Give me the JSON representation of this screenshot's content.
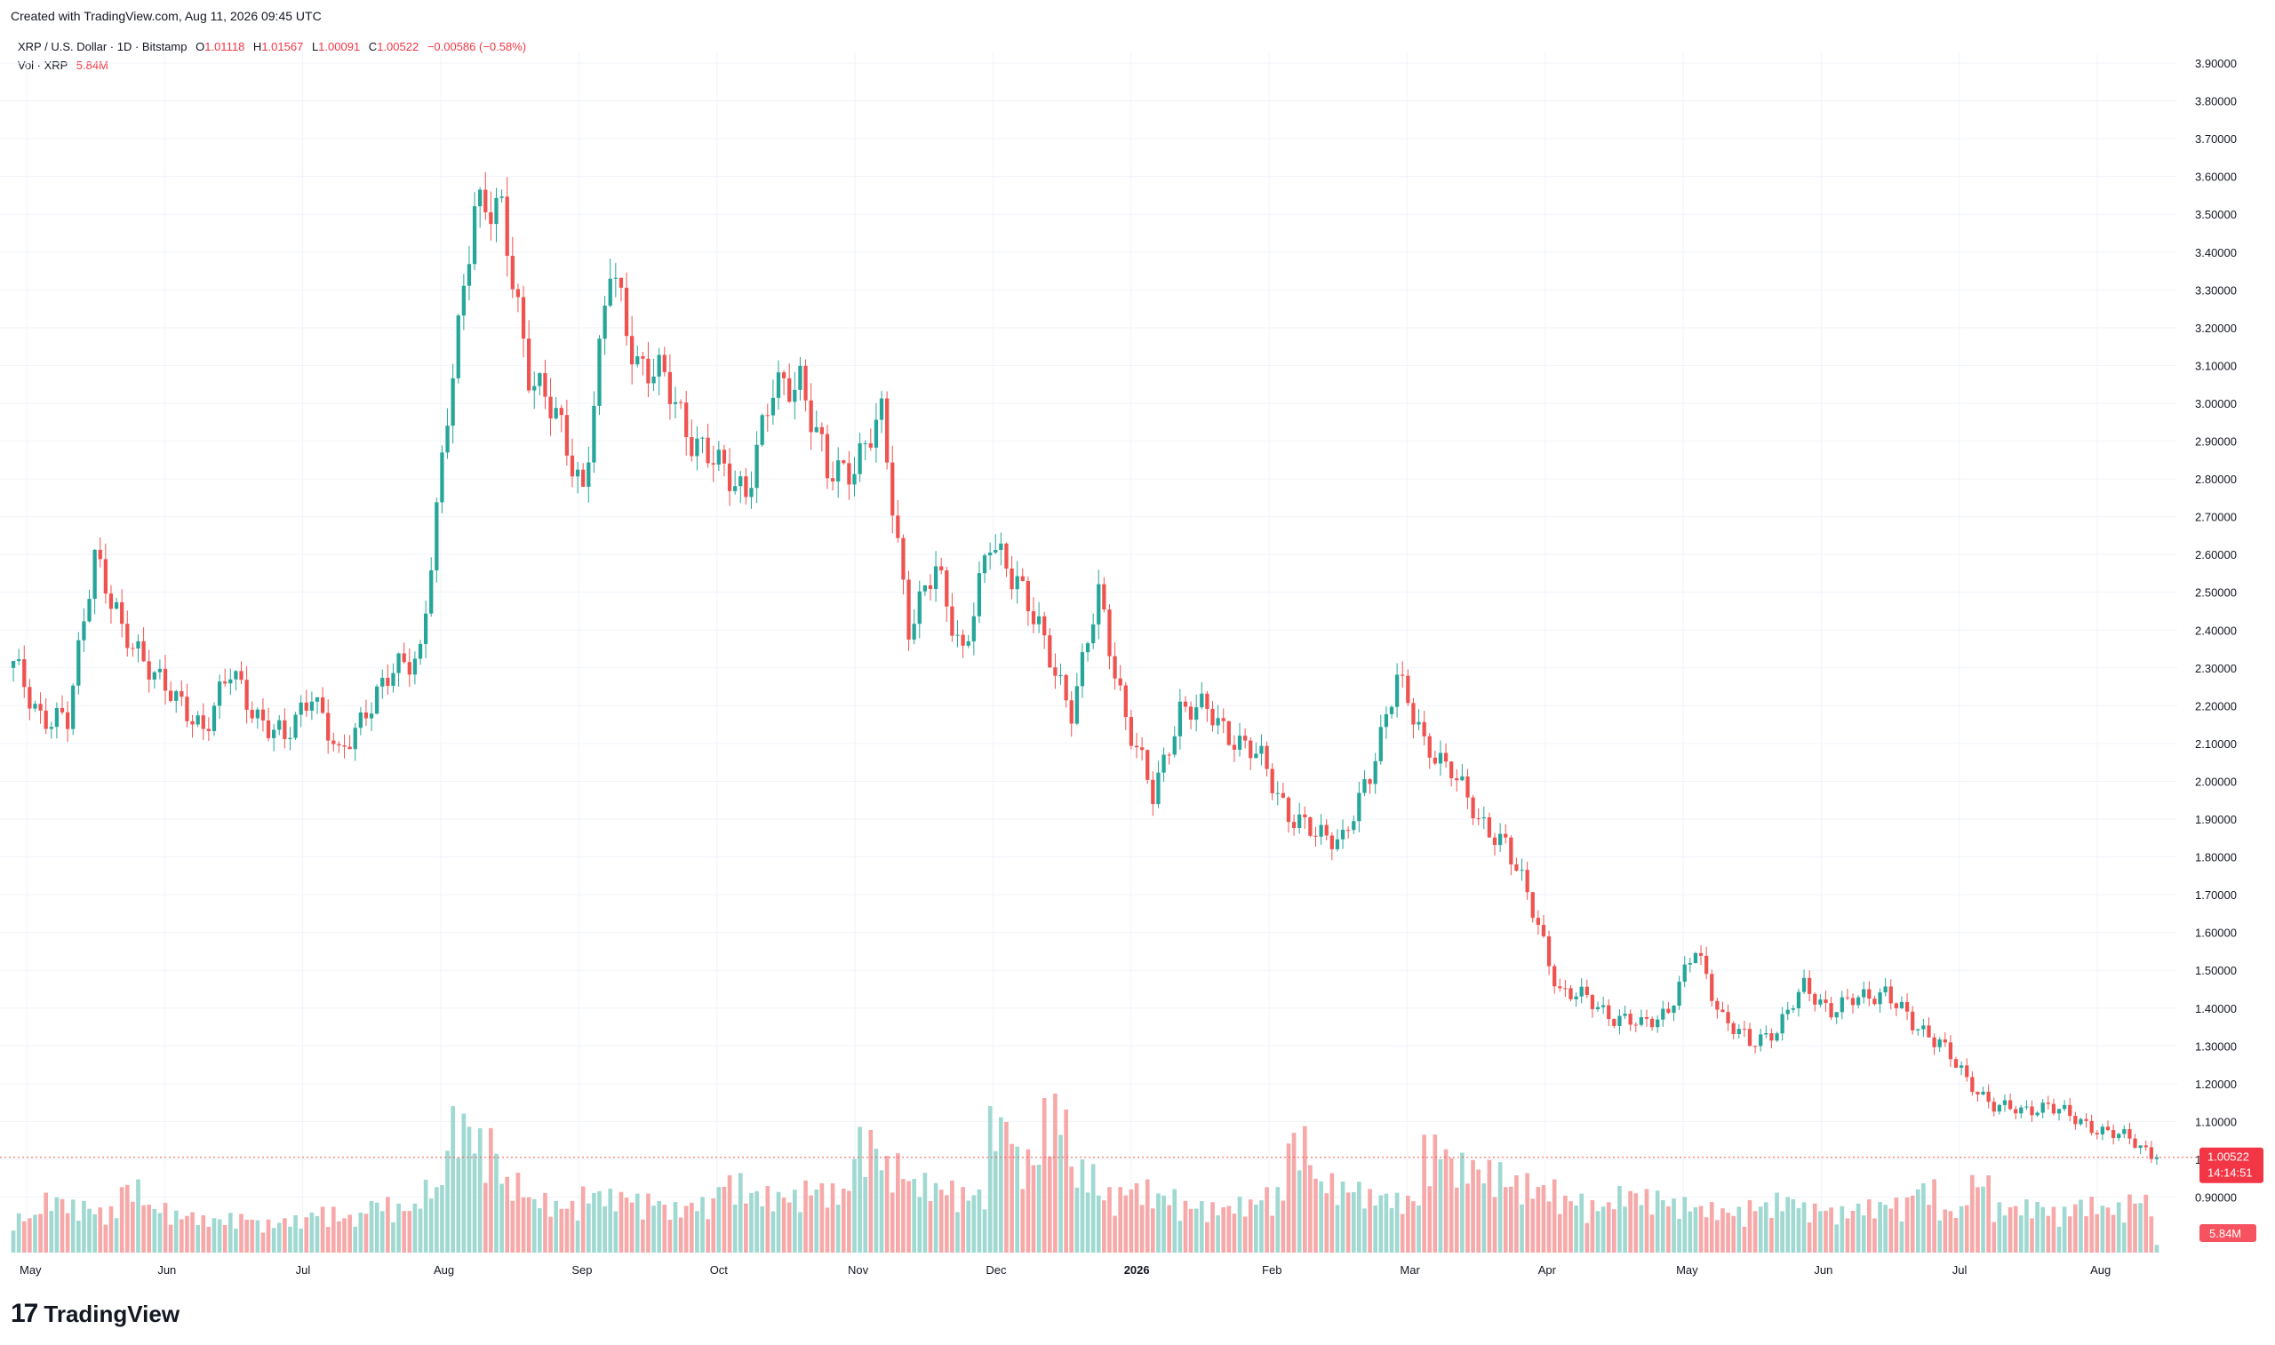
{
  "header": {
    "created": "Created with TradingView.com, Aug 11, 2026 09:45 UTC"
  },
  "legend": {
    "symbol": "XRP / U.S. Dollar · 1D · Bitstamp",
    "open_key": "O",
    "open": "1.01118",
    "high_key": "H",
    "high": "1.01567",
    "low_key": "L",
    "low": "1.00091",
    "close_key": "C",
    "close": "1.00522",
    "change": "−0.00586 (−0.58%)",
    "vol_label": "Vol · XRP",
    "vol_value": "5.84M"
  },
  "price_tag": {
    "price": "1.00522",
    "countdown": "14:14:51"
  },
  "vol_tag": "5.84M",
  "brand": {
    "logo": "17",
    "name": "TradingView"
  },
  "colors": {
    "up": "#26a69a",
    "down": "#ef5350",
    "vol_up": "#9fd9d1",
    "vol_down": "#f7a9a9",
    "grid": "#f0f3fa"
  },
  "chart_data": {
    "type": "candlestick",
    "title": "XRP / U.S. Dollar · 1D · Bitstamp",
    "y_ticks": [
      "3.90000",
      "3.80000",
      "3.70000",
      "3.60000",
      "3.50000",
      "3.40000",
      "3.30000",
      "3.20000",
      "3.10000",
      "3.00000",
      "2.90000",
      "2.80000",
      "2.70000",
      "2.60000",
      "2.50000",
      "2.40000",
      "2.30000",
      "2.20000",
      "2.10000",
      "2.00000",
      "1.90000",
      "1.80000",
      "1.70000",
      "1.60000",
      "1.50000",
      "1.40000",
      "1.30000",
      "1.20000",
      "1.10000",
      "1.00000",
      "0.90000"
    ],
    "ylim": [
      0.85,
      3.92
    ],
    "x_ticks": [
      "May",
      "Jun",
      "Jul",
      "Aug",
      "Sep",
      "Oct",
      "Nov",
      "Dec",
      "2026",
      "Feb",
      "Mar",
      "Apr",
      "May",
      "Jun",
      "Jul",
      "Aug"
    ],
    "grid": true,
    "closes_weekly": [
      2.3,
      2.18,
      2.15,
      2.62,
      2.38,
      2.32,
      2.2,
      2.15,
      2.28,
      2.18,
      2.1,
      2.25,
      2.05,
      2.2,
      2.28,
      2.35,
      2.95,
      3.55,
      3.48,
      3.1,
      2.95,
      2.78,
      3.35,
      3.12,
      3.05,
      2.92,
      2.82,
      2.78,
      3.02,
      3.08,
      2.8,
      2.85,
      2.95,
      2.42,
      2.55,
      2.35,
      2.62,
      2.55,
      2.35,
      2.2,
      2.48,
      2.18,
      1.95,
      2.2,
      2.18,
      2.12,
      2.05,
      1.92,
      1.85,
      1.86,
      2.0,
      2.3,
      2.08,
      2.05,
      1.88,
      1.85,
      1.65,
      1.45,
      1.42,
      1.38,
      1.35,
      1.4,
      1.55,
      1.38,
      1.3,
      1.35,
      1.45,
      1.4,
      1.42,
      1.45,
      1.35,
      1.32,
      1.2,
      1.15,
      1.12,
      1.15,
      1.1,
      1.08,
      1.05,
      1.01
    ],
    "volume_weekly_millions": [
      30,
      45,
      40,
      35,
      55,
      38,
      32,
      28,
      30,
      25,
      28,
      35,
      30,
      42,
      38,
      55,
      110,
      95,
      60,
      45,
      40,
      50,
      48,
      45,
      38,
      42,
      60,
      50,
      48,
      55,
      52,
      95,
      75,
      60,
      55,
      50,
      110,
      80,
      120,
      70,
      50,
      55,
      48,
      40,
      38,
      42,
      50,
      95,
      60,
      55,
      48,
      45,
      90,
      75,
      70,
      60,
      55,
      45,
      40,
      50,
      48,
      42,
      38,
      35,
      40,
      45,
      38,
      35,
      40,
      42,
      55,
      35,
      60,
      38,
      40,
      35,
      42,
      38,
      45,
      5.84
    ],
    "last_price": 1.00522,
    "last_volume": "5.84M"
  }
}
